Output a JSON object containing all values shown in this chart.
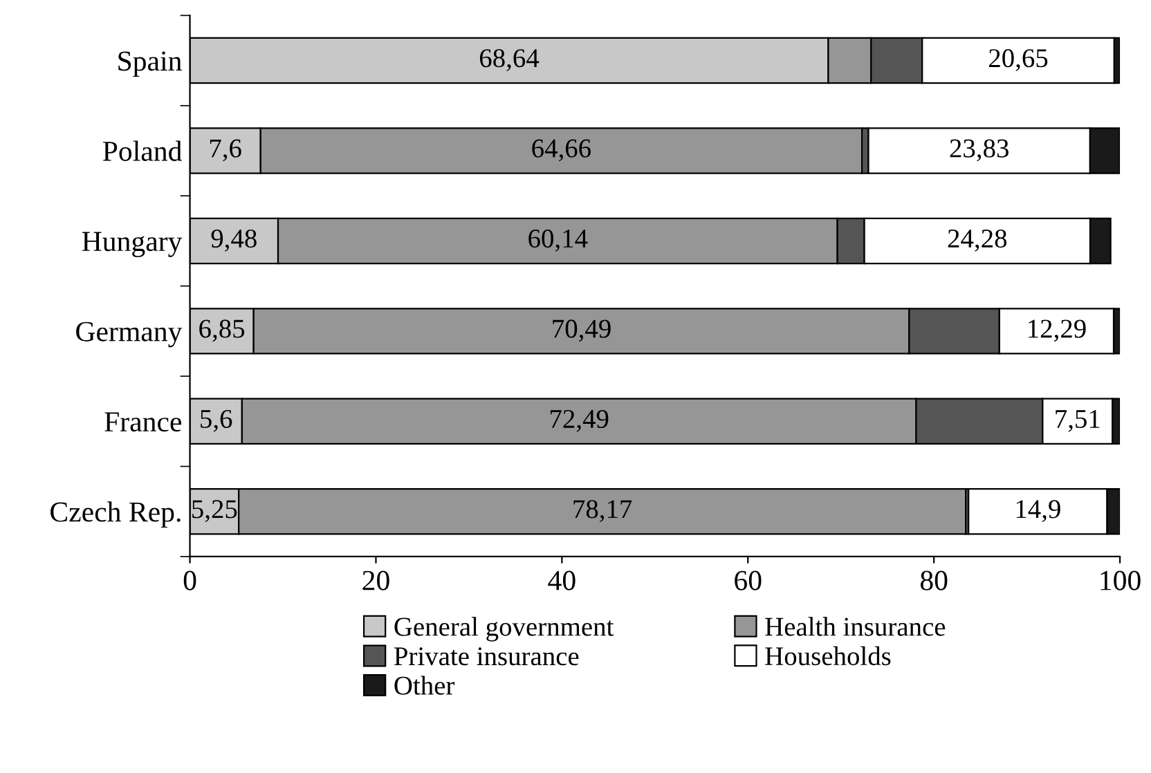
{
  "chart_data": {
    "type": "bar",
    "orientation": "horizontal",
    "stacked": true,
    "categories": [
      "Spain",
      "Poland",
      "Hungary",
      "Germany",
      "France",
      "Czech Rep."
    ],
    "series": [
      {
        "name": "General government",
        "color": "#c8c8c8",
        "values": [
          68.64,
          7.6,
          9.48,
          6.85,
          5.6,
          5.25
        ],
        "value_labels": [
          "68,64",
          "7,6",
          "9,48",
          "6,85",
          "5,6",
          "5,25"
        ]
      },
      {
        "name": "Health insurance",
        "color": "#969696",
        "values": [
          4.6,
          64.66,
          60.14,
          70.49,
          72.49,
          78.17
        ],
        "value_labels": [
          null,
          "64,66",
          "60,14",
          "70,49",
          "72,49",
          "78,17"
        ]
      },
      {
        "name": "Private insurance",
        "color": "#555555",
        "values": [
          5.5,
          0.7,
          2.9,
          9.7,
          13.6,
          0.3
        ],
        "value_labels": [
          null,
          null,
          null,
          null,
          null,
          null
        ]
      },
      {
        "name": "Households",
        "color": "#ffffff",
        "values": [
          20.65,
          23.83,
          24.28,
          12.29,
          7.51,
          14.9
        ],
        "value_labels": [
          "20,65",
          "23,83",
          "24,28",
          "12,29",
          "7,51",
          "14,9"
        ]
      },
      {
        "name": "Other",
        "color": "#1a1a1a",
        "values": [
          0.6,
          3.2,
          2.2,
          0.7,
          0.8,
          1.4
        ],
        "value_labels": [
          null,
          null,
          null,
          null,
          null,
          null
        ]
      }
    ],
    "xlim": [
      0,
      100
    ],
    "xticks": [
      0,
      20,
      40,
      60,
      80,
      100
    ],
    "grid": false,
    "legend": "bottom"
  }
}
